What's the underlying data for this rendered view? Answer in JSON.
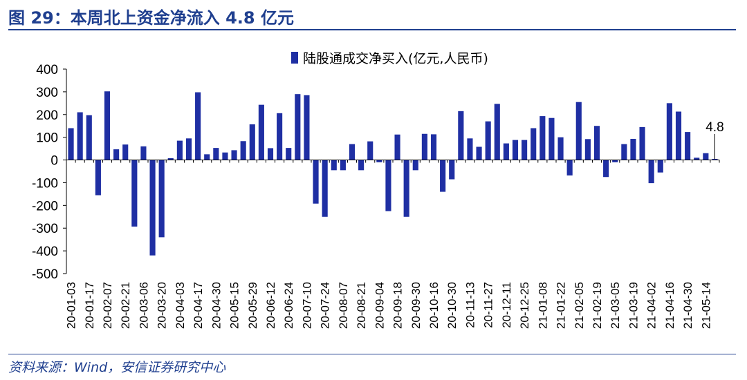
{
  "header": {
    "title": "图 29：本周北上资金净流入 4.8 亿元"
  },
  "footer": {
    "source": "资料来源：Wind，安信证券研究中心"
  },
  "colors": {
    "bar": "#1f2fa3",
    "accent": "#1f3f8f"
  },
  "chart_data": {
    "type": "bar",
    "series": [
      {
        "name": "陆股通成交净买入(亿元,人民币)",
        "values": [
          140,
          210,
          197,
          -155,
          302,
          47,
          68,
          -293,
          60,
          -420,
          -340,
          8,
          85,
          95,
          298,
          25,
          53,
          33,
          43,
          83,
          157,
          243,
          52,
          206,
          53,
          290,
          285,
          -192,
          -250,
          -45,
          -45,
          70,
          -45,
          82,
          -10,
          -225,
          112,
          -250,
          -45,
          115,
          113,
          -140,
          -85,
          215,
          95,
          58,
          170,
          247,
          73,
          88,
          88,
          140,
          193,
          185,
          100,
          -68,
          255,
          92,
          150,
          -75,
          -10,
          70,
          93,
          145,
          -102,
          -55,
          250,
          213,
          123,
          10,
          30,
          4.8
        ]
      }
    ],
    "x_tick_labels": [
      "20-01-03",
      "20-01-17",
      "20-02-07",
      "20-02-21",
      "20-03-06",
      "20-03-20",
      "20-04-03",
      "20-04-17",
      "20-04-30",
      "20-05-15",
      "20-05-29",
      "20-06-12",
      "20-06-24",
      "20-07-10",
      "20-07-24",
      "20-08-07",
      "20-08-21",
      "20-09-04",
      "20-09-18",
      "20-09-30",
      "20-10-16",
      "20-10-30",
      "20-11-13",
      "20-11-27",
      "20-12-11",
      "20-12-25",
      "21-01-08",
      "21-01-22",
      "21-02-05",
      "21-02-19",
      "21-03-05",
      "21-03-19",
      "21-04-02",
      "21-04-16",
      "21-04-30",
      "21-05-14"
    ],
    "y_ticks": [
      400,
      300,
      200,
      100,
      0,
      -100,
      -200,
      -300,
      -400,
      -500
    ],
    "ylim": [
      -500,
      400
    ],
    "legend_position": "top-center",
    "grid": false,
    "annotation": {
      "text": "4.8",
      "bar_index": 71
    }
  }
}
